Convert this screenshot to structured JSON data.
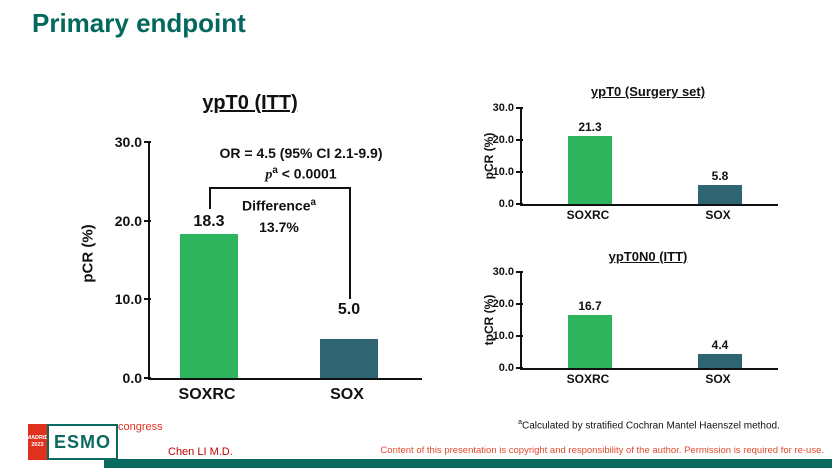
{
  "header": {
    "title": "Primary endpoint"
  },
  "colors": {
    "title_teal": "#03685e",
    "bar_green": "#2db45c",
    "bar_slate": "#2f6472",
    "logo_red": "#e0301e",
    "copyright_red": "#e14a2e",
    "footer_bar_teal": "#0b6a5f"
  },
  "chart_data": [
    {
      "type": "bar",
      "title": "ypT0 (ITT)",
      "ylabel": "pCR (%)",
      "ylim": [
        0,
        30
      ],
      "yticks": [
        "30.0",
        "20.0",
        "10.0",
        "0.0"
      ],
      "categories": [
        "SOXRC",
        "SOX"
      ],
      "values": [
        18.3,
        5.0
      ],
      "value_labels": [
        "18.3",
        "5.0"
      ],
      "bar_colors": [
        "#2db45c",
        "#2f6472"
      ],
      "grid": false,
      "annotations": {
        "or_line": "OR = 4.5 (95% CI 2.1-9.9)",
        "p_var": "p",
        "p_sup": "a",
        "p_rest": " < 0.0001",
        "difference_label": "Difference",
        "difference_sup": "a",
        "difference_value": "13.7%"
      }
    },
    {
      "type": "bar",
      "title": "ypT0 (Surgery set)",
      "ylabel": "pCR (%)",
      "ylim": [
        0,
        30
      ],
      "yticks": [
        "30.0",
        "20.0",
        "10.0",
        "0.0"
      ],
      "categories": [
        "SOXRC",
        "SOX"
      ],
      "values": [
        21.3,
        5.8
      ],
      "value_labels": [
        "21.3",
        "5.8"
      ],
      "bar_colors": [
        "#2db45c",
        "#2f6472"
      ],
      "grid": false
    },
    {
      "type": "bar",
      "title": "ypT0N0 (ITT)",
      "ylabel": "tpCR (%)",
      "ylim": [
        0,
        30
      ],
      "yticks": [
        "30.0",
        "20.0",
        "10.0",
        "0.0"
      ],
      "categories": [
        "SOXRC",
        "SOX"
      ],
      "values": [
        16.7,
        4.4
      ],
      "value_labels": [
        "16.7",
        "4.4"
      ],
      "bar_colors": [
        "#2db45c",
        "#2f6472"
      ],
      "grid": false
    }
  ],
  "footnote": {
    "sup": "a",
    "text": "Calculated by stratified Cochran Mantel Haenszel method."
  },
  "footer": {
    "logo": {
      "madrid": "MADRID",
      "year": "2023",
      "esmo": "ESMO",
      "congress": "congress"
    },
    "author": "Chen LI M.D.",
    "copyright": "Content of this presentation is copyright and responsibility of the author. Permission is required for re-use."
  }
}
